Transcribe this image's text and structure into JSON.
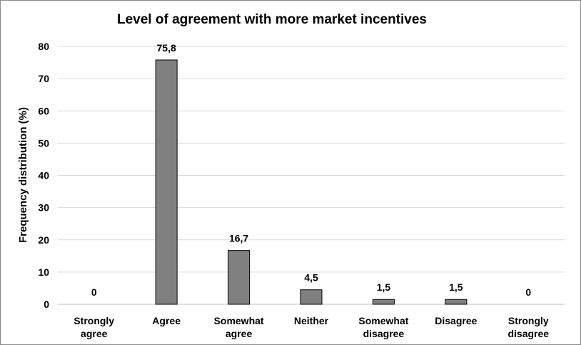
{
  "chart_data": {
    "type": "bar",
    "title": "Level of agreement with more market incentives",
    "ylabel": "Frequency distribution (%)",
    "xlabel": "",
    "categories": [
      [
        "Strongly",
        "agree"
      ],
      [
        "Agree"
      ],
      [
        "Somewhat",
        "agree"
      ],
      [
        "Neither"
      ],
      [
        "Somewhat",
        "disagree"
      ],
      [
        "Disagree"
      ],
      [
        "Strongly",
        "disagree"
      ]
    ],
    "values": [
      0,
      75.8,
      16.7,
      4.5,
      1.5,
      1.5,
      0
    ],
    "value_labels": [
      "0",
      "75,8",
      "16,7",
      "4,5",
      "1,5",
      "1,5",
      "0"
    ],
    "ylim": [
      0,
      80
    ],
    "yticks": [
      0,
      10,
      20,
      30,
      40,
      50,
      60,
      70,
      80
    ],
    "grid": true,
    "legend": "none",
    "colors": {
      "bar_fill": "#808080",
      "bar_stroke": "#000000",
      "grid": "#d9d9d9",
      "axis": "#bfbfbf"
    }
  }
}
